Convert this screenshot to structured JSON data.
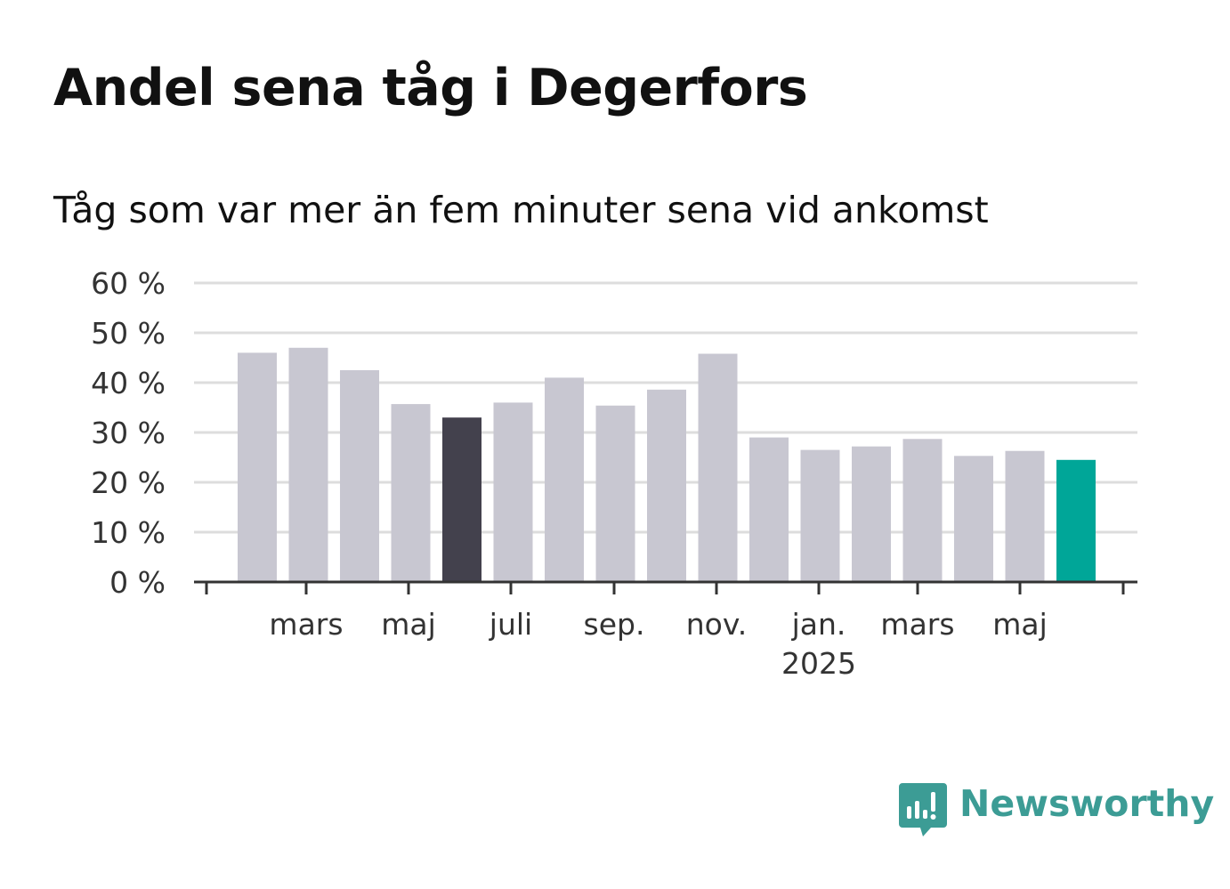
{
  "header": {
    "title": "Andel sena tåg i Degerfors",
    "subtitle": "Tåg som var mer än fem minuter sena vid ankomst"
  },
  "brand": {
    "name": "Newsworthy",
    "icon": "newsworthy-logo-icon",
    "color": "#3c9c95"
  },
  "colors": {
    "bar_default": "#c8c7d1",
    "bar_highlight_dark": "#43414d",
    "bar_highlight_latest": "#00a698",
    "grid": "#dddddd",
    "axis": "#333333"
  },
  "chart_data": {
    "type": "bar",
    "categories": [
      "2024-02",
      "2024-03",
      "2024-04",
      "2024-05",
      "2024-06",
      "2024-07",
      "2024-08",
      "2024-09",
      "2024-10",
      "2024-11",
      "2024-12",
      "2025-01",
      "2025-02",
      "2025-03",
      "2025-04",
      "2025-05",
      "2025-06"
    ],
    "values": [
      46,
      47,
      42.5,
      35.7,
      33,
      36,
      41,
      35.4,
      38.6,
      45.8,
      29,
      26.5,
      27.2,
      28.7,
      25.3,
      26.3,
      24.5
    ],
    "highlight": {
      "2024-06": "dark",
      "2025-06": "latest"
    },
    "ylim": [
      0,
      60
    ],
    "yticks": [
      0,
      10,
      20,
      30,
      40,
      50,
      60
    ],
    "ytick_labels": [
      "0 %",
      "10 %",
      "20 %",
      "30 %",
      "40 %",
      "50 %",
      "60 %"
    ],
    "xticks": [
      {
        "category": "2024-03",
        "label": "mars",
        "sublabel": ""
      },
      {
        "category": "2024-05",
        "label": "maj",
        "sublabel": ""
      },
      {
        "category": "2024-07",
        "label": "juli",
        "sublabel": ""
      },
      {
        "category": "2024-09",
        "label": "sep.",
        "sublabel": ""
      },
      {
        "category": "2024-11",
        "label": "nov.",
        "sublabel": ""
      },
      {
        "category": "2025-01",
        "label": "jan.",
        "sublabel": "2025"
      },
      {
        "category": "2025-03",
        "label": "mars",
        "sublabel": ""
      },
      {
        "category": "2025-05",
        "label": "maj",
        "sublabel": ""
      }
    ],
    "xlabel": "",
    "ylabel": "",
    "grid": true
  }
}
